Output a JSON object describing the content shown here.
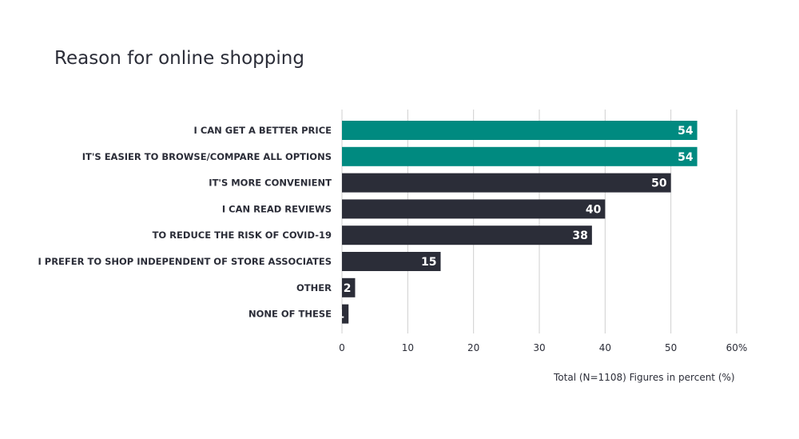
{
  "chart_data": {
    "type": "bar",
    "orientation": "horizontal",
    "title": "Reason for online shopping",
    "note": "Total (N=1108) Figures in percent (%)",
    "categories": [
      "I CAN GET A BETTER PRICE",
      "IT'S EASIER TO BROWSE/COMPARE ALL OPTIONS",
      "IT'S MORE CONVENIENT",
      "I CAN READ REVIEWS",
      "TO REDUCE THE RISK OF COVID-19",
      "I PREFER TO SHOP INDEPENDENT OF STORE ASSOCIATES",
      "OTHER",
      "NONE OF THESE"
    ],
    "values": [
      54,
      54,
      50,
      40,
      38,
      15,
      2,
      1
    ],
    "value_labels": [
      "54",
      "54",
      "50",
      "40",
      "38",
      "15",
      "2",
      "1"
    ],
    "highlighted": [
      true,
      true,
      false,
      false,
      false,
      false,
      false,
      false
    ],
    "xlim": [
      0,
      60
    ],
    "ticks": [
      0,
      10,
      20,
      30,
      40,
      50,
      60
    ],
    "tick_labels": [
      "0",
      "10",
      "20",
      "30",
      "40",
      "50",
      "60%"
    ],
    "grid": true,
    "colors": {
      "highlight": "#008a80",
      "default": "#2b2d38"
    }
  }
}
